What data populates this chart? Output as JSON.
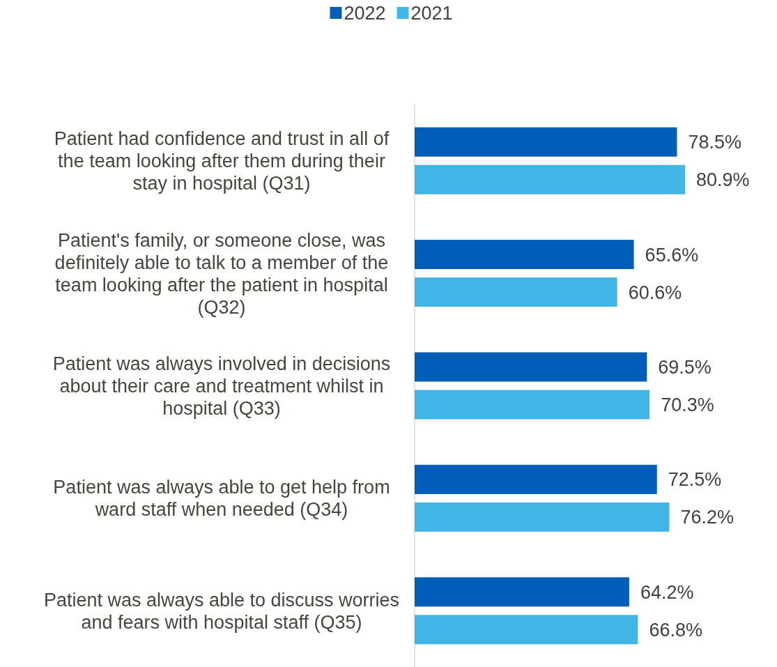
{
  "chart_data": {
    "type": "bar",
    "orientation": "horizontal",
    "categories": [
      "Patient had confidence and trust in all of the team looking after them during their stay in hospital (Q31)",
      "Patient's family, or someone close, was definitely able to talk to a member of the team looking after the patient in hospital (Q32)",
      "Patient was always involved in decisions about their care and treatment whilst in hospital (Q33)",
      "Patient was always able to get help from ward staff when needed (Q34)",
      "Patient was always able to discuss worries and fears with hospital staff (Q35)"
    ],
    "series": [
      {
        "name": "2022",
        "color": "#005eb8",
        "values": [
          78.5,
          65.6,
          69.5,
          72.5,
          64.2
        ],
        "value_labels": [
          "78.5%",
          "65.6%",
          "69.5%",
          "72.5%",
          "64.2%"
        ]
      },
      {
        "name": "2021",
        "color": "#41b6e6",
        "values": [
          80.9,
          60.6,
          70.3,
          76.2,
          66.8
        ],
        "value_labels": [
          "80.9%",
          "60.6%",
          "70.3%",
          "76.2%",
          "66.8%"
        ]
      }
    ],
    "legend": "top"
  }
}
